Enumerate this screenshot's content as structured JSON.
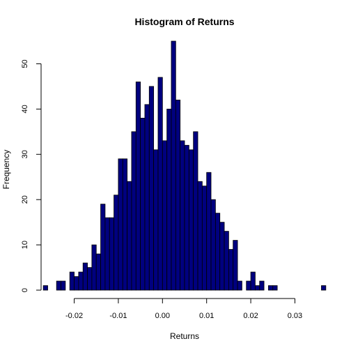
{
  "chart_data": {
    "type": "bar",
    "title": "Histogram of Returns",
    "xlabel": "Returns",
    "ylabel": "Frequency",
    "xlim": [
      -0.0275,
      0.0375
    ],
    "ylim": [
      0,
      55
    ],
    "bin_width": 0.001,
    "bins_start": -0.027,
    "values": [
      1,
      0,
      0,
      2,
      2,
      0,
      4,
      3,
      4,
      6,
      5,
      10,
      8,
      19,
      16,
      16,
      21,
      29,
      29,
      24,
      35,
      46,
      38,
      41,
      45,
      31,
      47,
      33,
      40,
      55,
      42,
      33,
      32,
      31,
      35,
      24,
      23,
      26,
      20,
      17,
      15,
      13,
      9,
      11,
      2,
      0,
      2,
      4,
      1,
      2,
      0,
      1,
      1,
      0,
      0,
      0,
      0,
      0,
      0,
      0,
      0,
      0,
      0,
      1
    ],
    "x_ticks": [
      "-0.02",
      "-0.01",
      "0.00",
      "0.01",
      "0.02",
      "0.03"
    ],
    "y_ticks": [
      "0",
      "10",
      "20",
      "30",
      "40",
      "50"
    ],
    "bar_color": "#00007f",
    "bar_border": "#000000",
    "grid": false
  }
}
